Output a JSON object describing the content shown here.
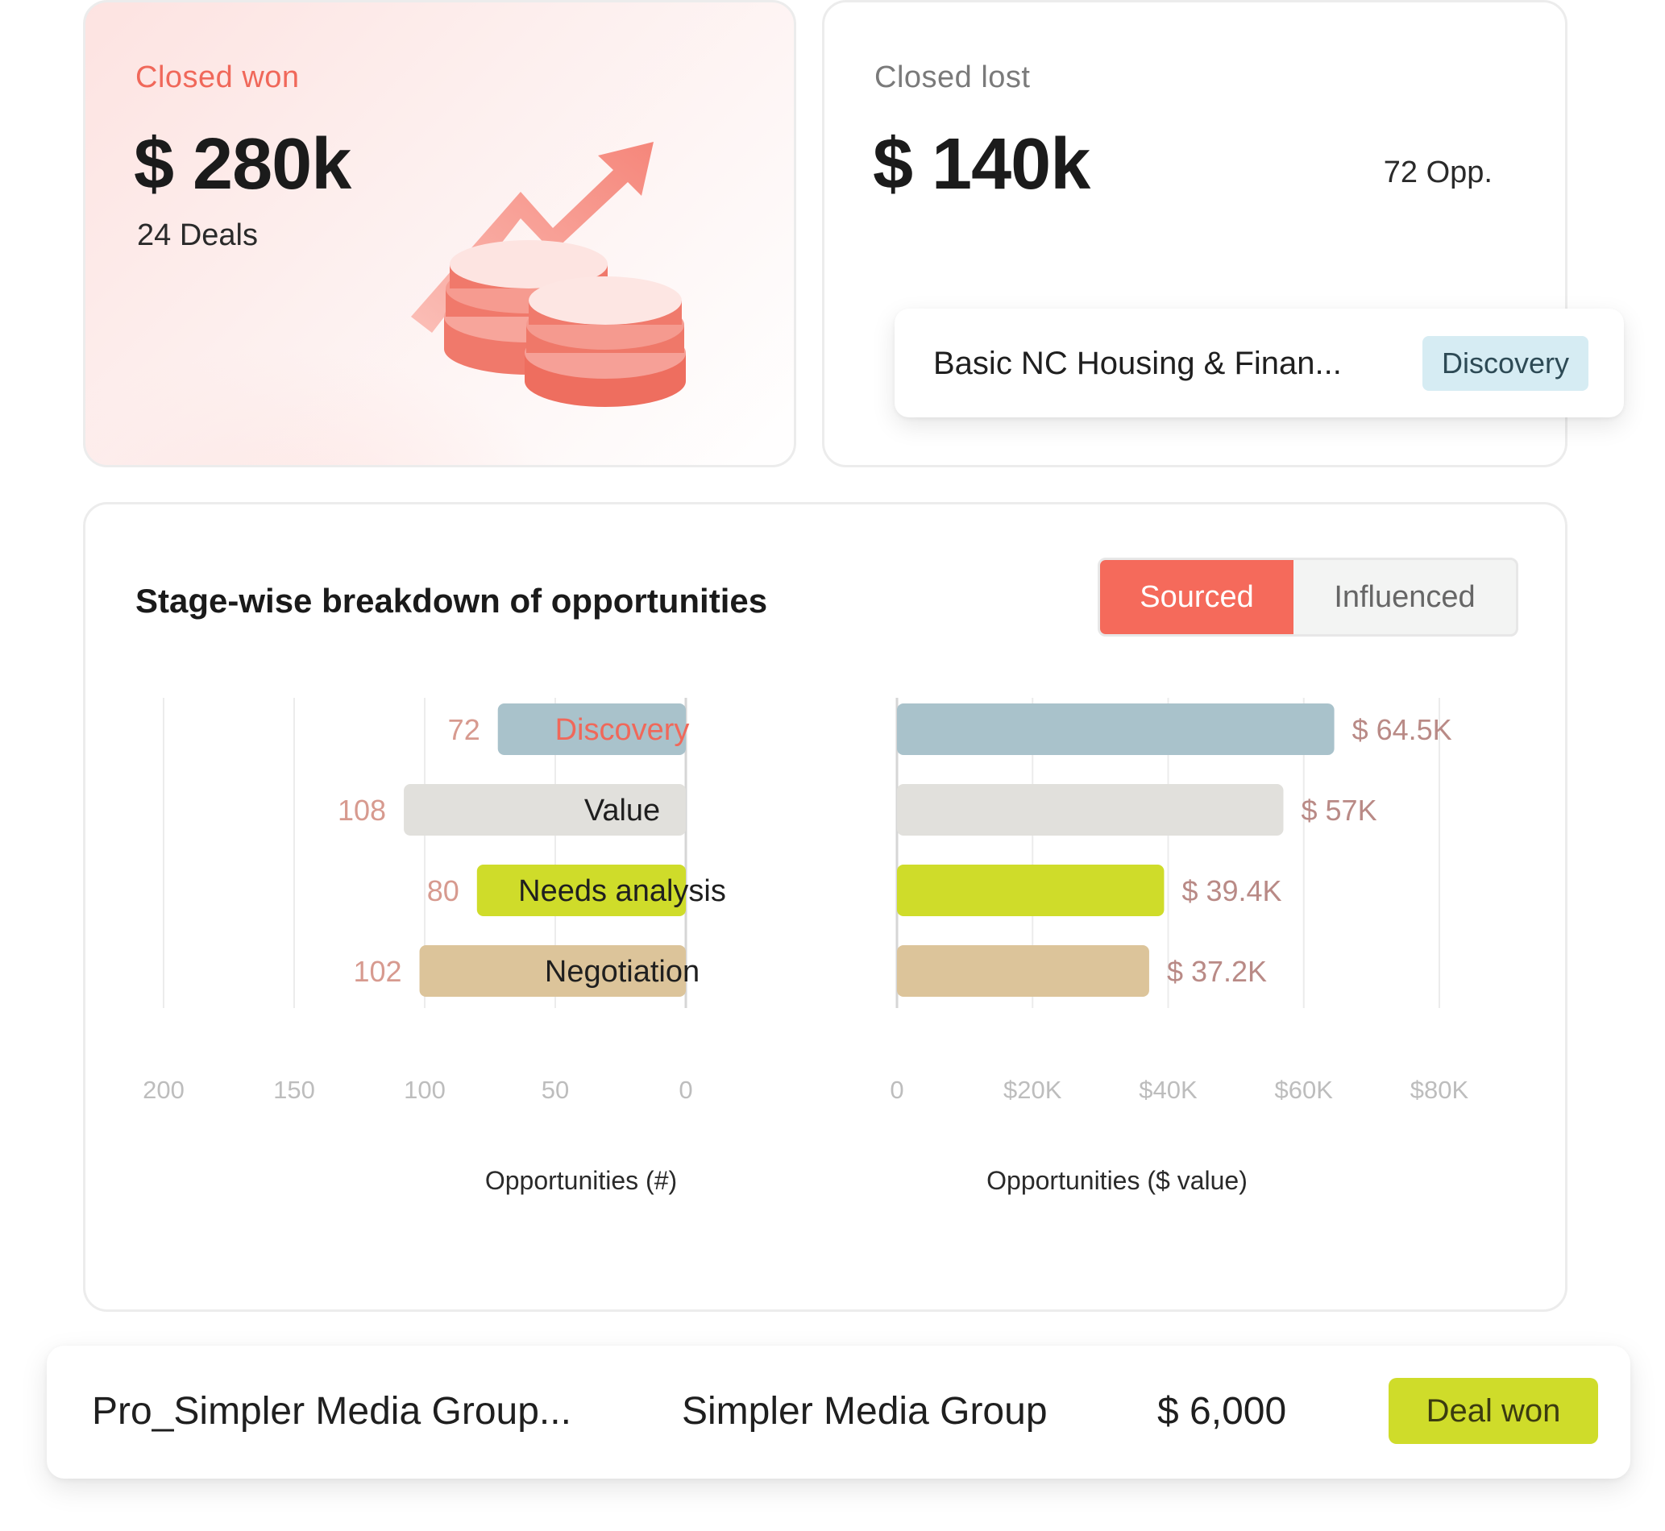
{
  "closed_won": {
    "label": "Closed won",
    "value": "$ 280k",
    "deals": "24 Deals",
    "label_color": "#f0685a"
  },
  "closed_lost": {
    "label": "Closed lost",
    "value": "$ 140k",
    "opportunities": "72 Opp.",
    "label_color": "#7a7a7a"
  },
  "highlight_row": {
    "name": "Basic NC Housing & Finan...",
    "stage": "Discovery"
  },
  "breakdown": {
    "title": "Stage-wise breakdown of opportunities",
    "toggle": {
      "sourced": "Sourced",
      "influenced": "Influenced",
      "active": "sourced"
    }
  },
  "chart_data": {
    "type": "bar",
    "orientation": "horizontal-butterfly",
    "categories": [
      "Discovery",
      "Value",
      "Needs analysis",
      "Negotiation"
    ],
    "category_colors": [
      "#a9c2cb",
      "#e1e0dc",
      "#cfdc2a",
      "#dcc49a"
    ],
    "highlight_category": "Discovery",
    "series": [
      {
        "side": "left",
        "values": [
          72,
          108,
          80,
          102
        ],
        "labels": [
          "72",
          "108",
          "80",
          "102"
        ],
        "xlabel": "Opportunities (#)",
        "xlim": [
          0,
          200
        ],
        "ticks": [
          "200",
          "150",
          "100",
          "50",
          "0"
        ]
      },
      {
        "side": "right",
        "values": [
          64500,
          57000,
          39400,
          37200
        ],
        "labels": [
          "$ 64.5K",
          "$ 57K",
          "$ 39.4K",
          "$ 37.2K"
        ],
        "xlabel": "Opportunities ($ value)",
        "xlim": [
          0,
          80000
        ],
        "ticks": [
          "0",
          "$20K",
          "$40K",
          "$60K",
          "$80K"
        ]
      }
    ],
    "grid": true
  },
  "deal_row": {
    "name": "Pro_Simpler Media Group...",
    "company": "Simpler Media Group",
    "amount": "$ 6,000",
    "status": "Deal won"
  }
}
